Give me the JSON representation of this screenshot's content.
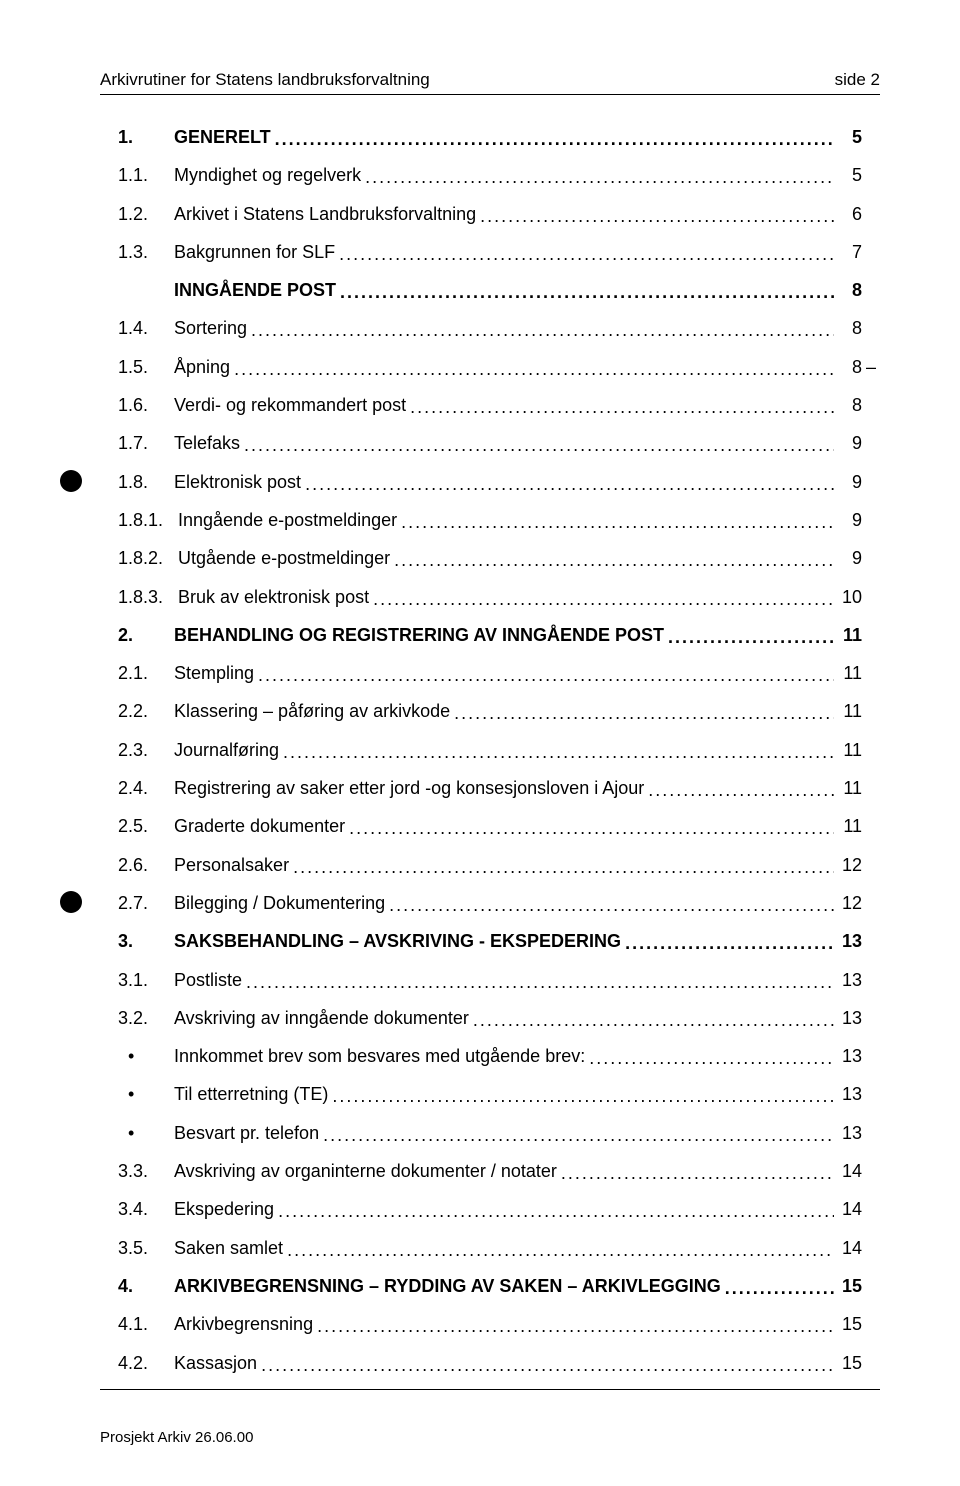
{
  "header": {
    "title": "Arkivrutiner for Statens landbruksforvaltning",
    "page": "side 2"
  },
  "footer": "Prosjekt Arkiv 26.06.00",
  "toc": [
    {
      "num": "1.",
      "title": "GENERELT",
      "page": "5",
      "level": 0
    },
    {
      "num": "1.1.",
      "title": "Myndighet og regelverk",
      "page": "5",
      "level": 1
    },
    {
      "num": "1.2.",
      "title": "Arkivet i Statens Landbruksforvaltning",
      "page": "6",
      "level": 1
    },
    {
      "num": "1.3.",
      "title": "Bakgrunnen for SLF",
      "page": "7",
      "level": 1
    },
    {
      "num": "",
      "title": "INNGÅENDE POST",
      "page": "8",
      "level": 0
    },
    {
      "num": "1.4.",
      "title": "Sortering",
      "page": "8",
      "level": 1
    },
    {
      "num": "1.5.",
      "title": "Åpning",
      "page": "8",
      "level": 1,
      "tilde": true
    },
    {
      "num": "1.6.",
      "title": "Verdi- og rekommandert post",
      "page": "8",
      "level": 1
    },
    {
      "num": "1.7.",
      "title": "Telefaks",
      "page": "9",
      "level": 1
    },
    {
      "num": "1.8.",
      "title": "Elektronisk post",
      "page": "9",
      "level": 1,
      "marginDot": true
    },
    {
      "num": "1.8.1.",
      "title": "Inngående e-postmeldinger",
      "page": "9",
      "level": 2
    },
    {
      "num": "1.8.2.",
      "title": "Utgående e-postmeldinger",
      "page": "9",
      "level": 2
    },
    {
      "num": "1.8.3.",
      "title": "Bruk av elektronisk post",
      "page": "10",
      "level": 2
    },
    {
      "num": "2.",
      "title": "BEHANDLING OG REGISTRERING AV INNGÅENDE POST",
      "page": "11",
      "level": 0
    },
    {
      "num": "2.1.",
      "title": "Stempling",
      "page": "11",
      "level": 1
    },
    {
      "num": "2.2.",
      "title": "Klassering – påføring av arkivkode",
      "page": "11",
      "level": 1
    },
    {
      "num": "2.3.",
      "title": "Journalføring",
      "page": "11",
      "level": 1
    },
    {
      "num": "2.4.",
      "title": "Registrering av saker etter jord -og konsesjonsloven i Ajour",
      "page": "11",
      "level": 1
    },
    {
      "num": "2.5.",
      "title": "Graderte dokumenter",
      "page": "11",
      "level": 1
    },
    {
      "num": "2.6.",
      "title": "Personalsaker",
      "page": "12",
      "level": 1
    },
    {
      "num": "2.7.",
      "title": "Bilegging / Dokumentering",
      "page": "12",
      "level": 1,
      "marginDot": true
    },
    {
      "num": "3.",
      "title": "SAKSBEHANDLING – AVSKRIVING - EKSPEDERING",
      "page": "13",
      "level": 0
    },
    {
      "num": "3.1.",
      "title": "Postliste",
      "page": "13",
      "level": 1
    },
    {
      "num": "3.2.",
      "title": "Avskriving av inngående dokumenter",
      "page": "13",
      "level": 1
    },
    {
      "num": "•",
      "title": "Innkommet brev som besvares med utgående brev:",
      "page": "13",
      "level": 3
    },
    {
      "num": "•",
      "title": "Til etterretning (TE)",
      "page": "13",
      "level": 3
    },
    {
      "num": "•",
      "title": "Besvart pr. telefon",
      "page": "13",
      "level": 3
    },
    {
      "num": "3.3.",
      "title": "Avskriving av organinterne dokumenter / notater",
      "page": "14",
      "level": 1
    },
    {
      "num": "3.4.",
      "title": "Ekspedering",
      "page": "14",
      "level": 1
    },
    {
      "num": "3.5.",
      "title": "Saken samlet",
      "page": "14",
      "level": 1
    },
    {
      "num": "4.",
      "title": "ARKIVBEGRENSNING – RYDDING AV SAKEN – ARKIVLEGGING",
      "page": "15",
      "level": 0
    },
    {
      "num": "4.1.",
      "title": "Arkivbegrensning",
      "page": "15",
      "level": 1
    },
    {
      "num": "4.2.",
      "title": "Kassasjon",
      "page": "15",
      "level": 1
    }
  ],
  "leader": "...................................................................................................................................................................",
  "colors": {
    "text": "#000000",
    "background": "#ffffff"
  }
}
